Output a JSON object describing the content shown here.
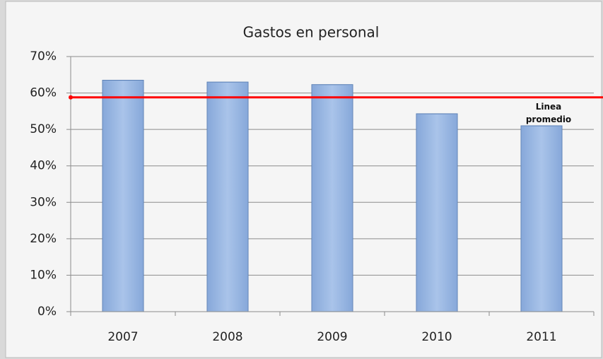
{
  "chart_data": {
    "type": "bar",
    "title": "Gastos en personal",
    "categories": [
      "2007",
      "2008",
      "2009",
      "2010",
      "2011"
    ],
    "values": [
      63.5,
      63,
      62.3,
      54.3,
      51
    ],
    "color": "#95b3e0",
    "ylim": [
      0,
      70
    ],
    "yticks": [
      {
        "value": 0,
        "label": "0%"
      },
      {
        "value": 10,
        "label": "10%"
      },
      {
        "value": 20,
        "label": "20%"
      },
      {
        "value": 30,
        "label": "30%"
      },
      {
        "value": 40,
        "label": "40%"
      },
      {
        "value": 50,
        "label": "50%"
      },
      {
        "value": 60,
        "label": "60%"
      },
      {
        "value": 70,
        "label": "70%"
      }
    ],
    "grid": true,
    "average_line": {
      "value": 58.8,
      "label": "Linea promedio",
      "color": "#ff0000"
    }
  }
}
